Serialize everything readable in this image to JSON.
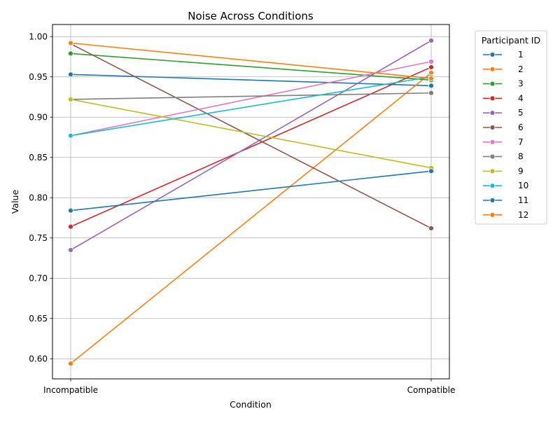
{
  "chart_data": {
    "type": "line",
    "title": "Noise Across Conditions",
    "xlabel": "Condition",
    "ylabel": "Value",
    "categories": [
      "Incompatible",
      "Compatible"
    ],
    "ylim": [
      0.575,
      1.015
    ],
    "yticks": [
      "0.60",
      "0.65",
      "0.70",
      "0.75",
      "0.80",
      "0.85",
      "0.90",
      "0.95",
      "1.00"
    ],
    "grid": true,
    "legend": {
      "title": "Participant ID",
      "placement": "outside-right"
    },
    "series": [
      {
        "name": "1",
        "color": "#1f77b4",
        "values": [
          0.953,
          0.939
        ]
      },
      {
        "name": "2",
        "color": "#ff7f0e",
        "values": [
          0.594,
          0.955
        ]
      },
      {
        "name": "3",
        "color": "#2ca02c",
        "values": [
          0.979,
          0.946
        ]
      },
      {
        "name": "4",
        "color": "#d62728",
        "values": [
          0.764,
          0.962
        ]
      },
      {
        "name": "5",
        "color": "#9467bd",
        "values": [
          0.735,
          0.995
        ]
      },
      {
        "name": "6",
        "color": "#8c564b",
        "values": [
          0.991,
          0.762
        ]
      },
      {
        "name": "7",
        "color": "#e377c2",
        "values": [
          0.877,
          0.969
        ]
      },
      {
        "name": "8",
        "color": "#7f7f7f",
        "values": [
          0.922,
          0.93
        ]
      },
      {
        "name": "9",
        "color": "#bcbd22",
        "values": [
          0.922,
          0.837
        ]
      },
      {
        "name": "10",
        "color": "#17becf",
        "values": [
          0.877,
          0.95
        ]
      },
      {
        "name": "11",
        "color": "#1f77b4",
        "values": [
          0.784,
          0.833
        ]
      },
      {
        "name": "12",
        "color": "#ff7f0e",
        "values": [
          0.992,
          0.948
        ]
      }
    ]
  }
}
